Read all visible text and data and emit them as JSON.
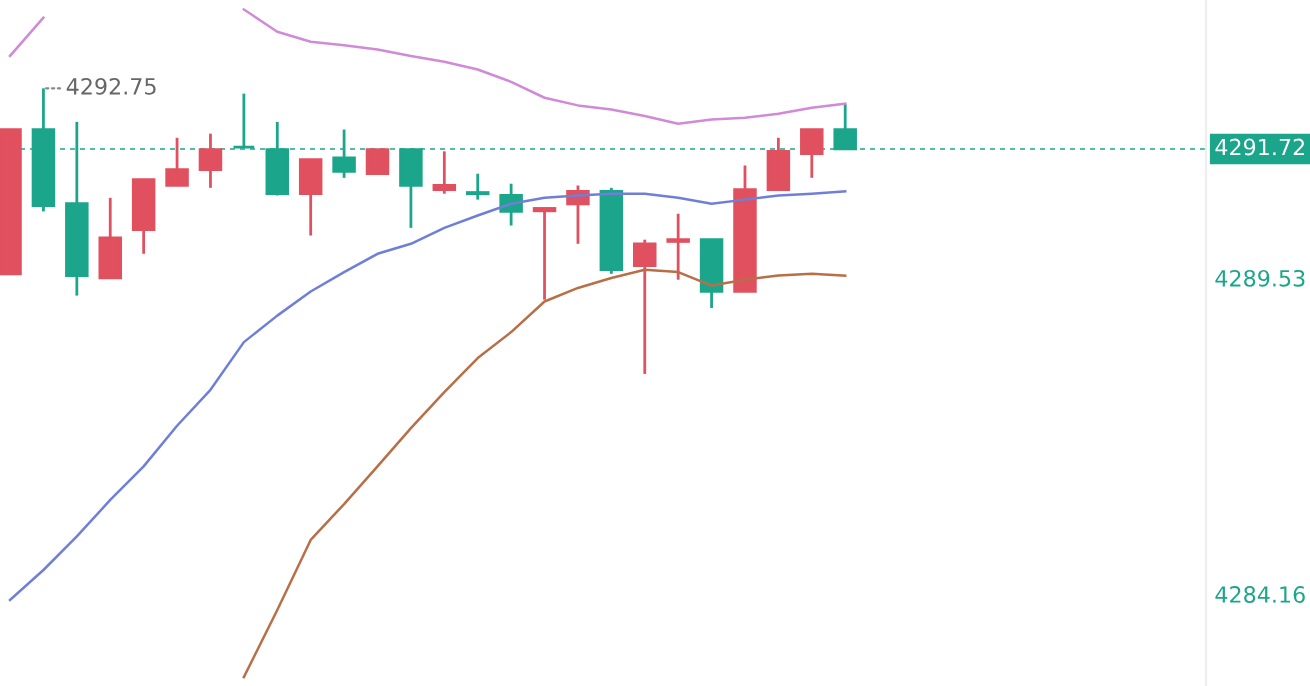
{
  "chart_data": {
    "type": "candlestick",
    "categories": [
      null,
      null,
      null,
      null,
      null,
      null,
      null,
      null,
      null,
      null,
      null,
      null,
      null,
      null,
      null,
      null,
      null,
      null,
      null,
      null,
      null,
      null,
      null,
      null,
      null,
      null
    ],
    "ohlc": [
      [
        4289.6,
        4292.05,
        4289.6,
        4292.05
      ],
      [
        4292.05,
        4292.75,
        4290.66,
        4290.76
      ],
      [
        4290.79,
        4292.18,
        4289.23,
        4289.57
      ],
      [
        4289.53,
        4290.89,
        4289.53,
        4290.21
      ],
      [
        4290.35,
        4291.2,
        4289.94,
        4291.2
      ],
      [
        4291.1,
        4291.91,
        4291.1,
        4291.37
      ],
      [
        4291.37,
        4291.98,
        4291.06,
        4291.71
      ],
      [
        4291.75,
        4292.66,
        4291.75,
        4291.75
      ],
      [
        4291.71,
        4292.18,
        4290.93,
        4290.96
      ],
      [
        4290.96,
        4291.54,
        4290.25,
        4291.54
      ],
      [
        4291.57,
        4292.05,
        4291.23,
        4291.34
      ],
      [
        4291.3,
        4291.71,
        4291.3,
        4291.71
      ],
      [
        4291.71,
        4291.71,
        4290.38,
        4291.1
      ],
      [
        4291.03,
        4291.68,
        4290.96,
        4291.1
      ],
      [
        4290.98,
        4291.3,
        4290.86,
        4290.96
      ],
      [
        4290.93,
        4291.13,
        4290.42,
        4290.66
      ],
      [
        4290.67,
        4290.71,
        4289.16,
        4290.71
      ],
      [
        4290.79,
        4291.1,
        4290.11,
        4291.0
      ],
      [
        4291.0,
        4291.06,
        4289.6,
        4289.67
      ],
      [
        4289.74,
        4290.18,
        4287.9,
        4290.11
      ],
      [
        4290.15,
        4290.62,
        4289.5,
        4290.18
      ],
      [
        4290.18,
        4290.18,
        4289.02,
        4289.3
      ],
      [
        4289.3,
        4291.44,
        4289.3,
        4291.03
      ],
      [
        4291.03,
        4291.91,
        4291.03,
        4291.68
      ],
      [
        4291.64,
        4292.05,
        4291.23,
        4292.05
      ],
      [
        4292.05,
        4292.49,
        4291.72,
        4291.72
      ]
    ],
    "colors": [
      "#e0505f",
      "#1ba58a",
      "#1ba58a",
      "#e0505f",
      "#e0505f",
      "#e0505f",
      "#e0505f",
      "#1ba58a",
      "#1ba58a",
      "#e0505f",
      "#1ba58a",
      "#e0505f",
      "#1ba58a",
      "#e0505f",
      "#1ba58a",
      "#1ba58a",
      "#e0505f",
      "#e0505f",
      "#1ba58a",
      "#e0505f",
      "#e0505f",
      "#1ba58a",
      "#e0505f",
      "#e0505f",
      "#e0505f",
      "#1ba58a"
    ],
    "series": [
      {
        "type": "line",
        "color": "#d08ad8",
        "values": [
          4293.3,
          4293.95,
          null,
          null,
          null,
          null,
          null,
          4294.09,
          4293.71,
          4293.54,
          4293.48,
          4293.41,
          4293.3,
          4293.2,
          4293.07,
          4292.86,
          4292.59,
          4292.46,
          4292.39,
          4292.28,
          4292.15,
          4292.22,
          4292.25,
          4292.32,
          4292.42,
          4292.49
        ]
      },
      {
        "type": "line",
        "color": "#6f7fd8",
        "values": [
          4284.06,
          4284.57,
          4285.14,
          4285.76,
          4286.33,
          4287.02,
          4287.63,
          4288.44,
          4288.89,
          4289.3,
          4289.63,
          4289.94,
          4290.11,
          4290.38,
          4290.59,
          4290.79,
          4290.89,
          4290.93,
          4290.96,
          4290.96,
          4290.89,
          4290.79,
          4290.86,
          4290.93,
          4290.96,
          4291.0
        ]
      },
      {
        "type": "line",
        "color": "#b86f48",
        "values": [
          null,
          null,
          null,
          null,
          null,
          null,
          null,
          4282.75,
          4283.89,
          4285.08,
          4285.69,
          4286.33,
          4286.98,
          4287.59,
          4288.17,
          4288.61,
          4289.13,
          4289.36,
          4289.53,
          4289.67,
          4289.63,
          4289.4,
          4289.5,
          4289.57,
          4289.6,
          4289.57
        ]
      }
    ],
    "ylim": [
      4282.6,
      4294.25
    ],
    "yticks": [
      4289.53,
      4284.16
    ],
    "tick_labels": "y",
    "grid": false,
    "ref_lines": [
      {
        "axis": "y",
        "value": 4291.72,
        "label": "4291.72",
        "color": "#1ba58a",
        "line_style": "dashed"
      }
    ],
    "annotations": [
      "4292.75"
    ]
  }
}
